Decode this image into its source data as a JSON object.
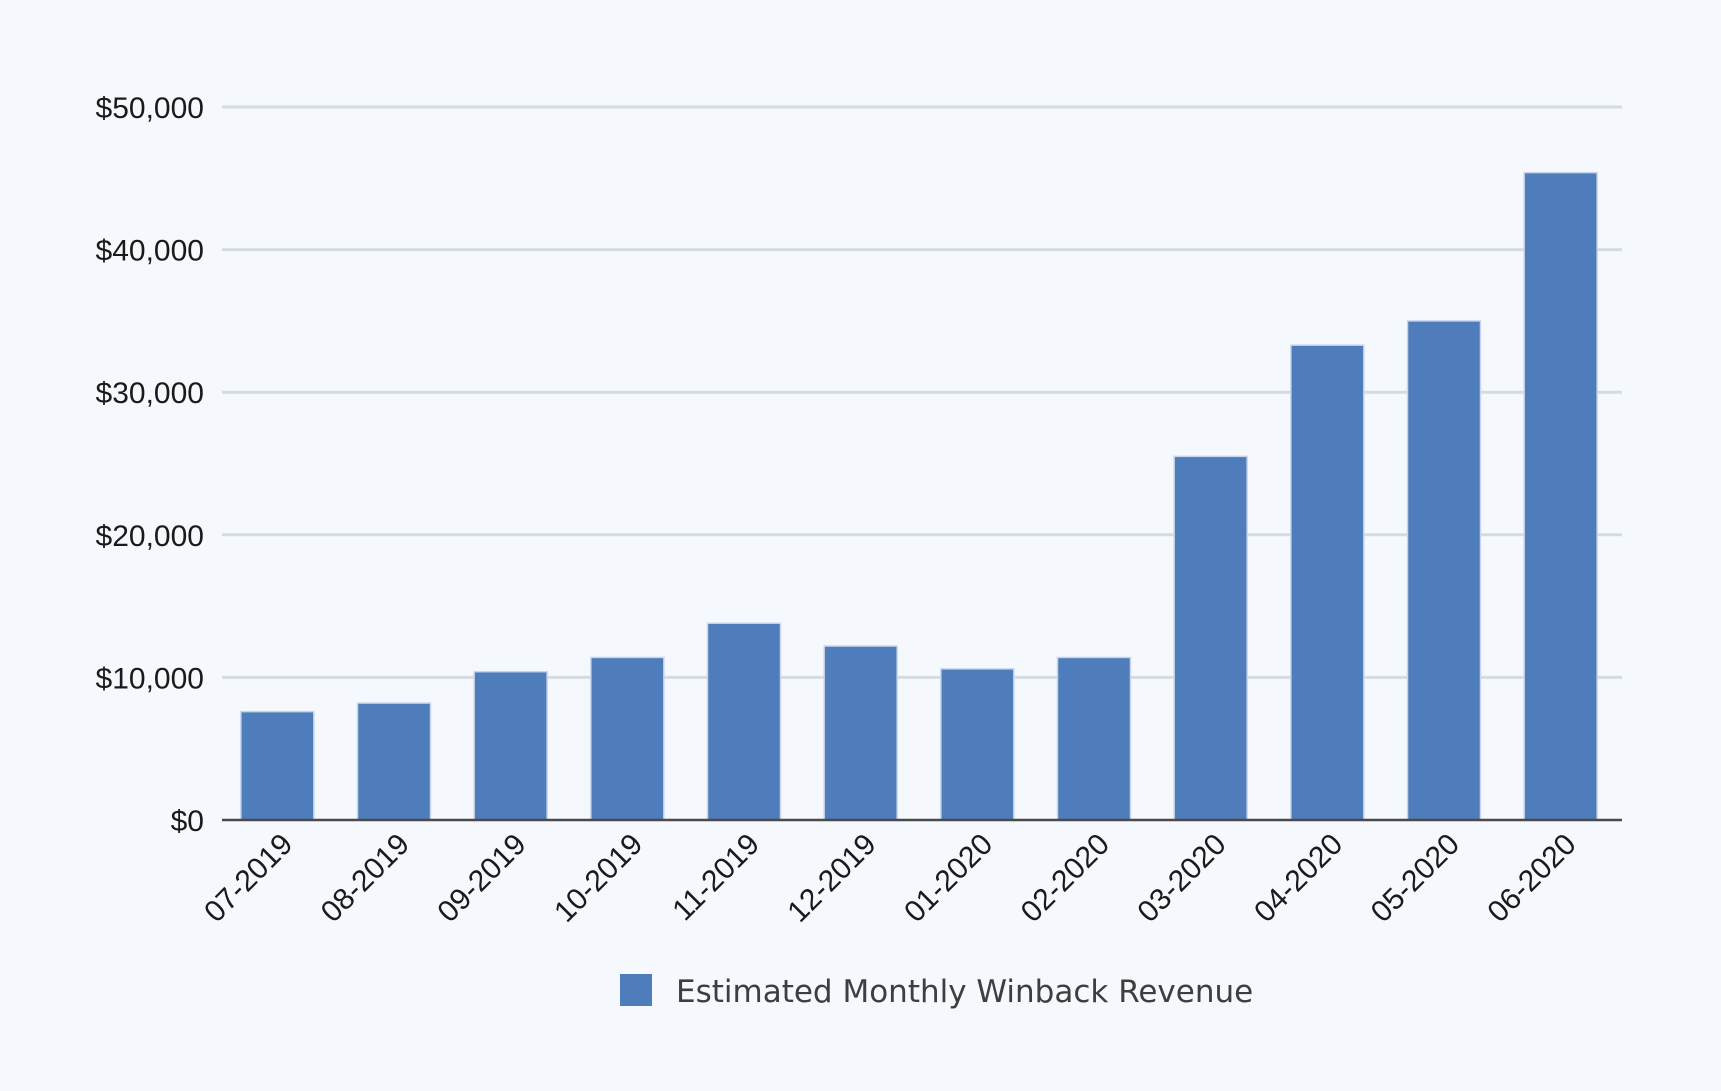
{
  "chart_data": {
    "type": "bar",
    "categories": [
      "07-2019",
      "08-2019",
      "09-2019",
      "10-2019",
      "11-2019",
      "12-2019",
      "01-2020",
      "02-2020",
      "03-2020",
      "04-2020",
      "05-2020",
      "06-2020"
    ],
    "series": [
      {
        "name": "Estimated Monthly Winback Revenue",
        "values": [
          7600,
          8200,
          10400,
          11400,
          13800,
          12200,
          10600,
          11400,
          25500,
          33300,
          35000,
          45400
        ],
        "color": "#4f7dbb"
      }
    ],
    "y_ticks": [
      0,
      10000,
      20000,
      30000,
      40000,
      50000
    ],
    "y_tick_labels": [
      "$0",
      "$10,000",
      "$20,000",
      "$30,000",
      "$40,000",
      "$50,000"
    ],
    "ylim": [
      0,
      50000
    ],
    "grid": true,
    "legend_position": "bottom"
  }
}
